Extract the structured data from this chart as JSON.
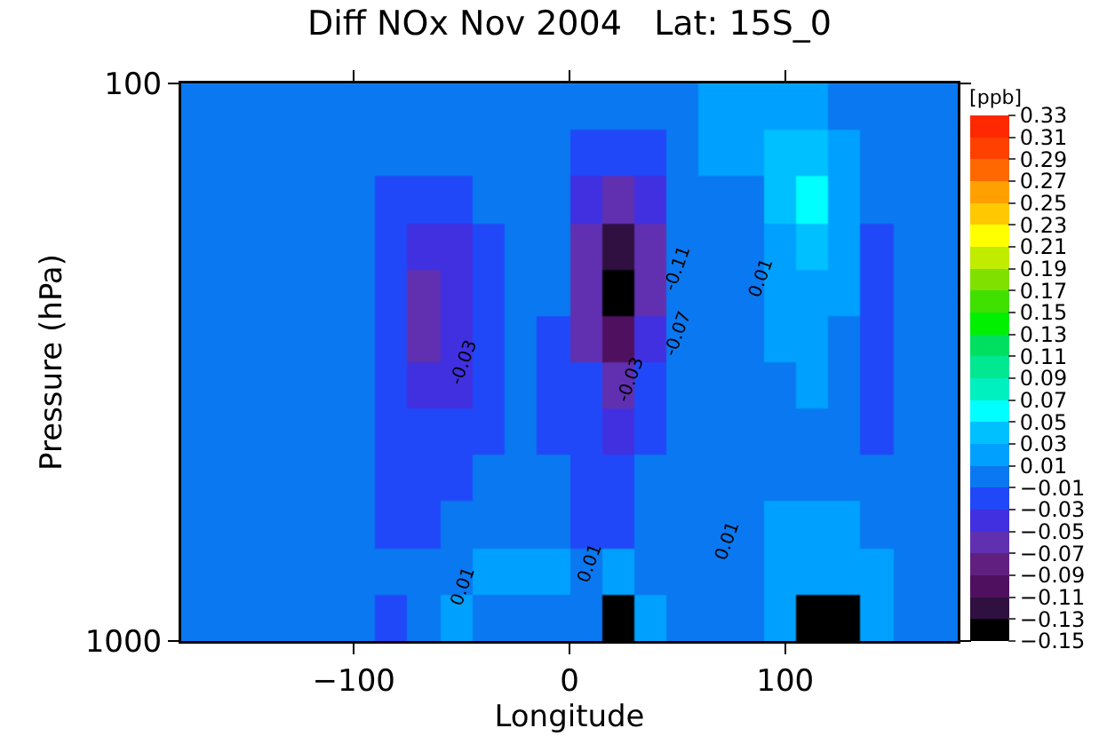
{
  "chart_data": {
    "type": "heatmap",
    "title": "Diff NOx Nov 2004   Lat: 15S_0",
    "xlabel": "Longitude",
    "ylabel": "Pressure (hPa)",
    "clabel": "[ppb]",
    "x": [
      -172.5,
      -157.5,
      -142.5,
      -127.5,
      -112.5,
      -97.5,
      -82.5,
      -67.5,
      -52.5,
      -37.5,
      -22.5,
      -7.5,
      7.5,
      22.5,
      37.5,
      52.5,
      67.5,
      82.5,
      97.5,
      112.5,
      127.5,
      142.5,
      157.5,
      172.5
    ],
    "y": [
      110,
      133,
      162,
      196,
      237,
      287,
      348,
      422,
      511,
      619,
      750,
      909
    ],
    "cells": [
      [
        0,
        0,
        0,
        0,
        0,
        0,
        0,
        0,
        0,
        0,
        0,
        0,
        0,
        0,
        0,
        0,
        0.02,
        0.02,
        0.02,
        0.02,
        0,
        0,
        0,
        0
      ],
      [
        0,
        0,
        0,
        0,
        0,
        0,
        0,
        0,
        0,
        0,
        0,
        0,
        -0.02,
        -0.02,
        -0.02,
        0,
        0.02,
        0.02,
        0.04,
        0.04,
        0.02,
        0,
        0,
        0
      ],
      [
        0,
        0,
        0,
        0,
        0,
        0,
        -0.02,
        -0.02,
        -0.02,
        0,
        0,
        0,
        -0.04,
        -0.06,
        -0.04,
        0,
        0,
        0,
        0.04,
        0.06,
        0.02,
        0,
        0,
        0
      ],
      [
        0,
        0,
        0,
        0,
        0,
        0,
        -0.02,
        -0.04,
        -0.04,
        -0.02,
        0,
        0,
        -0.06,
        -0.12,
        -0.06,
        0,
        0,
        0,
        0.02,
        0.04,
        0.02,
        -0.02,
        0,
        0
      ],
      [
        0,
        0,
        0,
        0,
        0,
        0,
        -0.02,
        -0.06,
        -0.04,
        -0.02,
        0,
        0,
        -0.06,
        -0.14,
        -0.05,
        0,
        0,
        0,
        0.02,
        0.02,
        0.02,
        -0.02,
        0,
        0
      ],
      [
        0,
        0,
        0,
        0,
        0,
        0,
        -0.02,
        -0.06,
        -0.04,
        -0.02,
        0,
        -0.02,
        -0.05,
        -0.1,
        -0.04,
        0,
        0,
        0,
        0.02,
        0.02,
        0,
        -0.02,
        0,
        0
      ],
      [
        0,
        0,
        0,
        0,
        0,
        0,
        -0.02,
        -0.04,
        -0.04,
        -0.02,
        0,
        -0.02,
        -0.03,
        -0.07,
        -0.03,
        0,
        0,
        0,
        0,
        0.02,
        0,
        -0.02,
        0,
        0
      ],
      [
        0,
        0,
        0,
        0,
        0,
        0,
        -0.02,
        -0.02,
        -0.02,
        -0.02,
        0,
        -0.02,
        -0.02,
        -0.04,
        -0.02,
        0,
        0,
        0,
        0,
        0,
        0,
        -0.02,
        0,
        0
      ],
      [
        0,
        0,
        0,
        0,
        0,
        0,
        -0.02,
        -0.02,
        -0.02,
        0,
        0,
        0,
        -0.02,
        -0.02,
        0,
        0,
        0,
        0,
        0,
        0,
        0,
        0,
        0,
        0
      ],
      [
        0,
        0,
        0,
        0,
        0,
        0,
        -0.02,
        -0.02,
        0,
        0,
        0,
        0,
        -0.02,
        -0.02,
        0,
        0,
        0,
        0,
        0.02,
        0.02,
        0.02,
        0,
        0,
        0
      ],
      [
        0,
        0,
        0,
        0,
        0,
        0,
        0,
        0,
        0,
        0.02,
        0.02,
        0.02,
        0,
        0.02,
        0,
        0,
        0,
        0,
        0.02,
        0.02,
        0.02,
        0.02,
        0,
        0
      ],
      [
        0,
        0,
        0,
        0,
        0,
        0,
        -0.02,
        0,
        0.02,
        0,
        0,
        0,
        0,
        -0.14,
        0.02,
        0,
        0,
        0,
        0.02,
        -0.14,
        -0.14,
        0.02,
        0,
        0
      ]
    ],
    "clim": [
      -0.15,
      0.33
    ],
    "cticks": [
      -0.15,
      -0.13,
      -0.11,
      -0.09,
      -0.07,
      -0.05,
      -0.03,
      -0.01,
      0.01,
      0.03,
      0.05,
      0.07,
      0.09,
      0.11,
      0.13,
      0.15,
      0.17,
      0.19,
      0.21,
      0.23,
      0.25,
      0.27,
      0.29,
      0.31,
      0.33
    ],
    "colors": [
      "#000000",
      "#301040",
      "#501060",
      "#602080",
      "#6030b0",
      "#4030e0",
      "#2048f8",
      "#0a78f0",
      "#00a0ff",
      "#00c0ff",
      "#00ffff",
      "#00f0c0",
      "#00e890",
      "#00e060",
      "#00f000",
      "#40e000",
      "#80e000",
      "#c0ec00",
      "#ffff00",
      "#ffc800",
      "#ffa000",
      "#ff6800",
      "#ff4000",
      "#ff2800"
    ],
    "xlim": [
      -180,
      180
    ],
    "xticks": [
      -100,
      0,
      100
    ],
    "ylim": [
      1000,
      100
    ],
    "yticks": [
      100,
      1000
    ],
    "log": true,
    "annotations": [
      "-0.03",
      "-0.11",
      "-0.07",
      "-0.03",
      "0.01",
      "0.01",
      "0.01",
      "0.01"
    ]
  }
}
